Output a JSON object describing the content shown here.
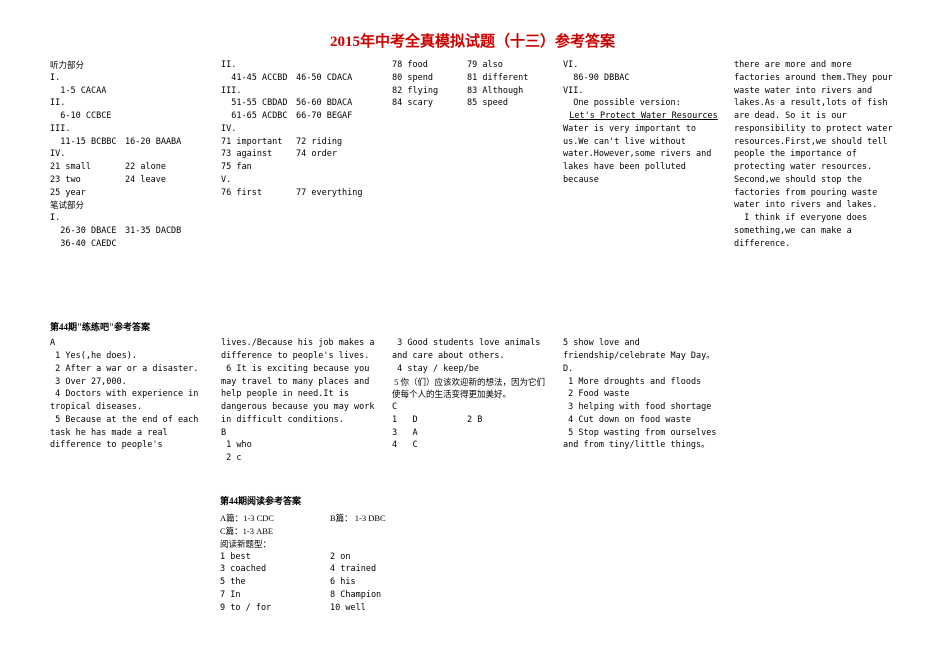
{
  "title": "2015年中考全真模拟试题（十三）参考答案",
  "main": {
    "col1": {
      "h_listen": "听力部分",
      "s1": "I.",
      "l1": "1-5 CACAA",
      "s2": "II.",
      "l2": "6-10  CCBCE",
      "s3": "III.",
      "l3a": "11-15 BCBBC",
      "l3b": "16-20 BAABA",
      "s4": "IV.",
      "l4a": "21 small",
      "l4b": "22 alone",
      "l4c": "23 two",
      "l4d": "24 leave",
      "l4e": "25 year",
      "h_write": "笔试部分",
      "s5": "I.",
      "l5a": "26-30 DBACE",
      "l5b": "31-35 DACDB",
      "l5c": "36-40 CAEDC"
    },
    "col2": {
      "s2": "II.",
      "l2a": "41-45 ACCBD",
      "l2b": "46-50 CDACA",
      "s3": "III.",
      "l3a": "51-55 CBDAD",
      "l3b": "56-60 BDACA",
      "l3c": "61-65 ACDBC",
      "l3d": "66-70 BEGAF",
      "s4": "IV.",
      "p71": "71 important",
      "p72": "72 riding",
      "p73": "73 against",
      "p74": "74 order",
      "p75": "75 fan",
      "s5": "V.",
      "p76": "76 first",
      "p77": "77 everything"
    },
    "col3": {
      "p78": "78 food",
      "p79": "79 also",
      "p80": "80 spend",
      "p81": "81 different",
      "p82": "82 flying",
      "p83": "83 Although",
      "p84": "84 scary",
      "p85": "85 speed",
      "s6": "VI.",
      "l6": "86-90 DBBAC",
      "s7": "VII.",
      "essay_intro": "One possible version:",
      "essay_title": "Let's Protect Water Resources",
      "essay_p1": "Water is very important to us.We can't live without water.However,some rivers and lakes have been polluted because"
    },
    "col4": {
      "essay_p2": "there are more and more factories around them.They pour waste water into rivers and lakes.As a result,lots of fish are dead. So it is our responsibility to protect water resources.First,we should tell people the importance of protecting water resources. Second,we should stop the factories from pouring waste water into rivers and lakes.",
      "essay_p3": "I think if everyone does something,we can make a difference."
    }
  },
  "sec2": {
    "title": "第44期\"练练吧\"参考答案",
    "c1": {
      "hA": "A",
      "a1": "1 Yes(,he does).",
      "a2": "2 After a war or a disaster.",
      "a3": "3 Over 27,000.",
      "a4": "4 Doctors with experience in tropical diseases.",
      "a5": "5 Because at the end of each task he has made a real difference to people's"
    },
    "c2": {
      "a5b": "lives./Because his job makes a difference to people's lives.",
      "a6": "6 It is exciting because you may travel to many places and help people in need.It is dangerous because you may work in difficult conditions.",
      "hB": "B",
      "b1": "1 who",
      "b2": "2 c"
    },
    "c3": {
      "b3": "3 Good students love animals and care about others.",
      "b4": "4 stay / keep/be",
      "b5": "5 你（们）应该欢迎新的想法，因为它们使每个人的生活变得更加美好。",
      "hC": "C",
      "c1a": "1",
      "c1b": "D",
      "c2a": "2 B",
      "c3a": "3",
      "c3b": "A",
      "c4a": "4",
      "c4b": "C"
    },
    "c4": {
      "b5cont": "5 show love and friendship/celebrate May Day。",
      "hD": "D.",
      "d1": "1 More droughts and floods",
      "d2": "2 Food waste",
      "d3": "3 helping with food shortage",
      "d4": "4 Cut down on food waste",
      "d5": "5 Stop wasting from ourselves and from tiny/little things。"
    }
  },
  "sec3": {
    "title": "第44期阅读参考答案",
    "lineA": "A篇：1-3 CDC",
    "lineB": "B篇：  1-3 DBC",
    "lineC": "C篇：1-3 ABE",
    "sub": "阅读新题型：",
    "g1": "1 best",
    "g2": "2 on",
    "g3": "3 coached",
    "g4": "4 trained",
    "g5": "5 the",
    "g6": "6 his",
    "g7": "7 In",
    "g8": "8 Champion",
    "g9": "9 to / for",
    "g10": "10 well"
  }
}
